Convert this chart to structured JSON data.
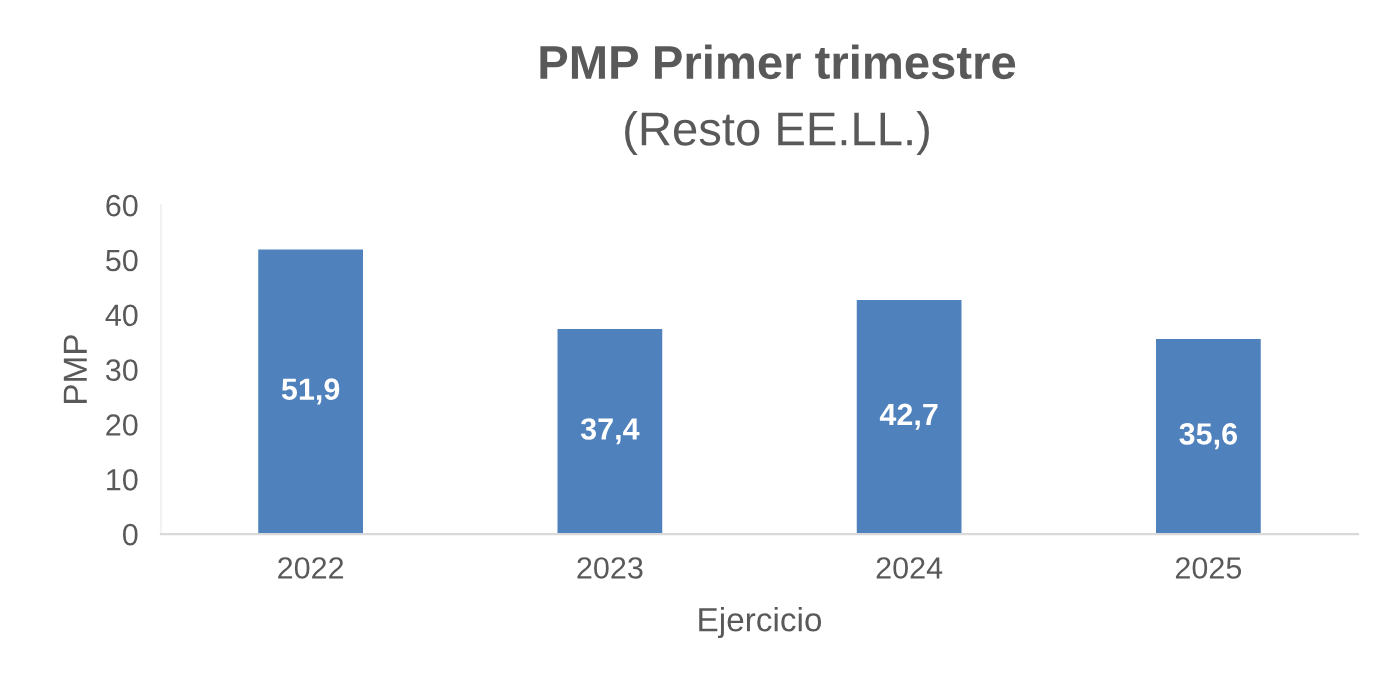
{
  "chart_data": {
    "type": "bar",
    "title": "PMP Primer trimestre",
    "subtitle": "(Resto EE.LL.)",
    "xlabel": "Ejercicio",
    "ylabel": "PMP",
    "categories": [
      "2022",
      "2023",
      "2024",
      "2025"
    ],
    "values": [
      51.9,
      37.4,
      42.7,
      35.6
    ],
    "value_labels": [
      "51,9",
      "37,4",
      "42,7",
      "35,6"
    ],
    "color": "#4f81bd",
    "ylim": [
      0,
      60
    ],
    "yticks": [
      0,
      10,
      20,
      30,
      40,
      50,
      60
    ],
    "grid": false,
    "legend": false
  }
}
